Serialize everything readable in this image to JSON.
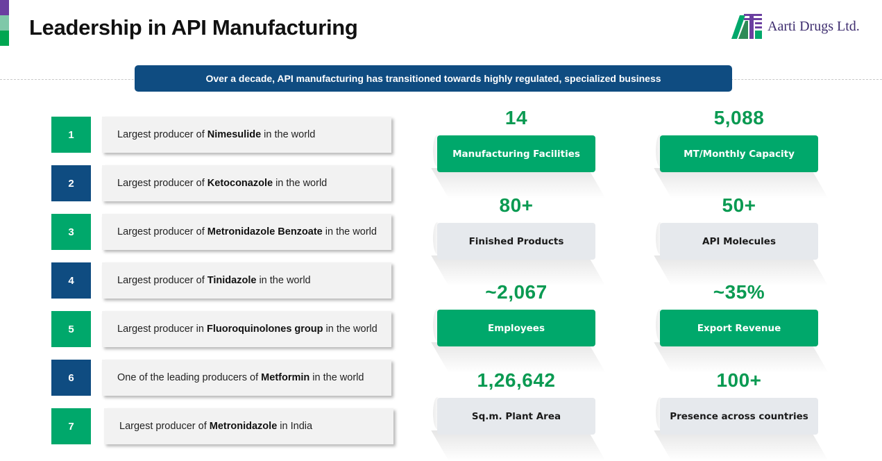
{
  "header": {
    "title": "Leadership in API Manufacturing",
    "company_name": "Aarti Drugs Ltd."
  },
  "banner": {
    "text": "Over a decade, API manufacturing has transitioned towards highly regulated, specialized business"
  },
  "rankings": [
    {
      "number": "1",
      "color": "green",
      "prefix": "Largest producer of ",
      "highlight": "Nimesulide",
      "suffix": " in the world"
    },
    {
      "number": "2",
      "color": "blue",
      "prefix": "Largest producer of ",
      "highlight": "Ketoconazole",
      "suffix": " in the world"
    },
    {
      "number": "3",
      "color": "green",
      "prefix": "Largest producer of ",
      "highlight": "Metronidazole Benzoate",
      "suffix": " in the world"
    },
    {
      "number": "4",
      "color": "blue",
      "prefix": "Largest producer of ",
      "highlight": "Tinidazole",
      "suffix": " in the world"
    },
    {
      "number": "5",
      "color": "green",
      "prefix": "Largest producer in ",
      "highlight": "Fluoroquinolones group",
      "suffix": " in the world"
    },
    {
      "number": "6",
      "color": "blue",
      "prefix": "One of the leading producers of ",
      "highlight": "Metformin",
      "suffix": " in the world"
    },
    {
      "number": "7",
      "color": "green",
      "prefix": "Largest producer of ",
      "highlight": "Metronidazole",
      "suffix": " in India"
    }
  ],
  "stats": [
    {
      "value": "14",
      "label": "Manufacturing Facilities",
      "style": "green"
    },
    {
      "value": "5,088",
      "label": "MT/Monthly Capacity",
      "style": "green"
    },
    {
      "value": "80+",
      "label": "Finished Products",
      "style": "grey"
    },
    {
      "value": "50+",
      "label": "API Molecules",
      "style": "grey"
    },
    {
      "value": "~2,067",
      "label": "Employees",
      "style": "green"
    },
    {
      "value": "~35%",
      "label": "Export Revenue",
      "style": "green"
    },
    {
      "value": "1,26,642",
      "label": "Sq.m. Plant Area",
      "style": "grey"
    },
    {
      "value": "100+",
      "label": "Presence across countries",
      "style": "grey"
    }
  ],
  "colors": {
    "green": "#00a86b",
    "blue": "#0f4c81",
    "value_green": "#0a9a52"
  },
  "icons": {
    "logo": "aarti-drugs-logo-icon"
  }
}
